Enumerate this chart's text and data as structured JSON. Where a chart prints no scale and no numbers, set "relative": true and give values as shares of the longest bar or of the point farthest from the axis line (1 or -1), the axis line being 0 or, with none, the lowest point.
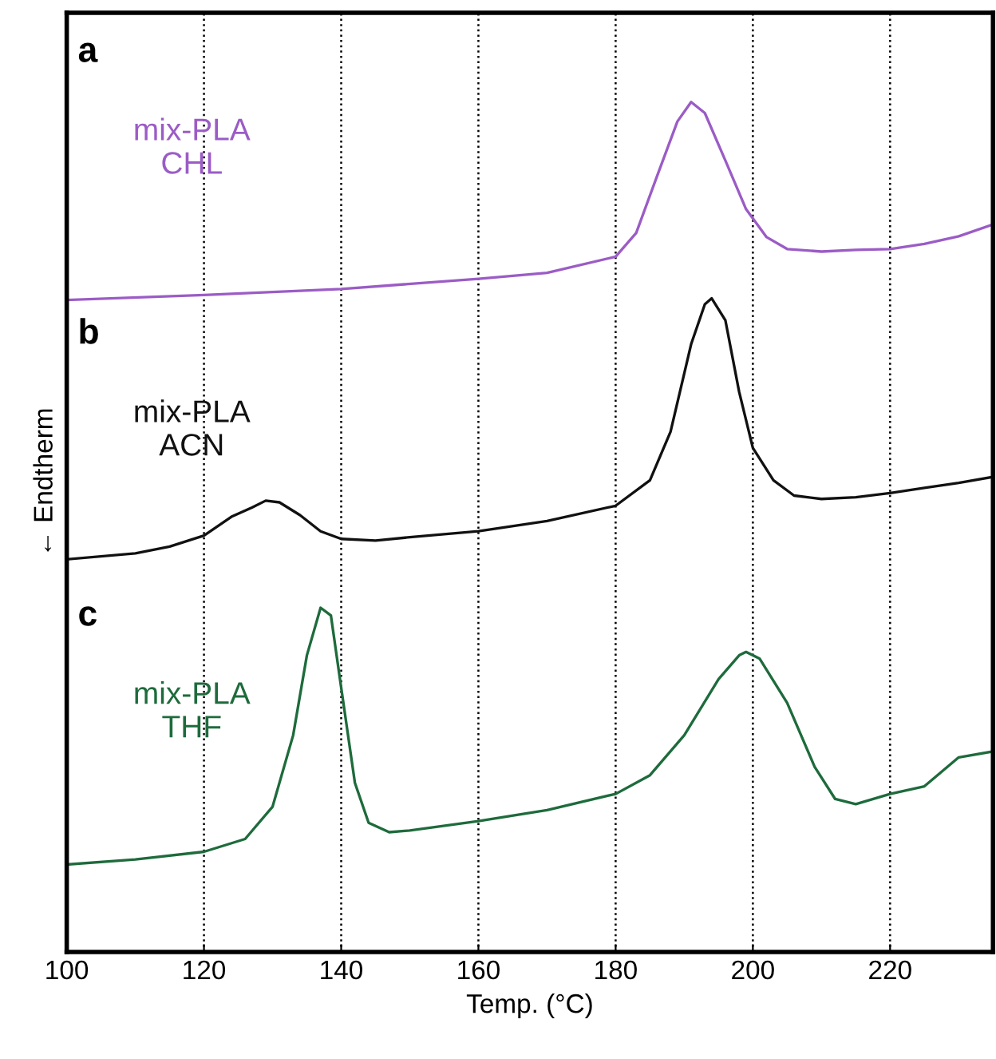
{
  "chart_data": {
    "type": "line",
    "relative": true,
    "xlabel": "Temp. (°C)",
    "ylabel": "← Endtherm",
    "xlim": [
      100,
      235
    ],
    "xticks": [
      100,
      120,
      140,
      160,
      180,
      200,
      220
    ],
    "grid": "x",
    "tick_labels": "x",
    "line_style": "solid",
    "marker": "none",
    "annotations": [
      "a",
      "b",
      "c"
    ],
    "series": [
      {
        "name": "mix-PLA\nCHL",
        "color": "#9b5cc6",
        "x": [
          100,
          120,
          140,
          160,
          170,
          180,
          183,
          186,
          189,
          191,
          193,
          196,
          199,
          202,
          205,
          210,
          215,
          220,
          225,
          230,
          235
        ],
        "values": [
          0.767,
          0.773,
          0.78,
          0.792,
          0.799,
          0.818,
          0.846,
          0.912,
          0.977,
          1.0,
          0.987,
          0.931,
          0.874,
          0.841,
          0.827,
          0.824,
          0.826,
          0.827,
          0.833,
          0.842,
          0.856
        ]
      },
      {
        "name": "mix-PLA\nACN",
        "color": "#111111",
        "x": [
          100,
          110,
          115,
          120,
          124,
          127,
          129,
          131,
          134,
          137,
          140,
          145,
          150,
          160,
          170,
          180,
          185,
          188,
          191,
          193,
          194,
          196,
          198,
          200,
          203,
          206,
          210,
          215,
          220,
          225,
          230,
          235
        ],
        "values": [
          0.462,
          0.469,
          0.477,
          0.49,
          0.512,
          0.523,
          0.531,
          0.529,
          0.514,
          0.495,
          0.486,
          0.484,
          0.488,
          0.495,
          0.507,
          0.525,
          0.555,
          0.612,
          0.715,
          0.762,
          0.769,
          0.743,
          0.659,
          0.593,
          0.555,
          0.537,
          0.533,
          0.535,
          0.54,
          0.546,
          0.552,
          0.559
        ]
      },
      {
        "name": "mix-PLA\nTHF",
        "color": "#1e6b3c",
        "x": [
          100,
          110,
          120,
          126,
          130,
          133,
          135,
          137,
          138.5,
          140,
          142,
          144,
          147,
          150,
          160,
          170,
          180,
          185,
          190,
          195,
          198,
          199,
          201,
          205,
          209,
          212,
          215,
          220,
          225,
          230,
          235
        ],
        "values": [
          0.103,
          0.109,
          0.118,
          0.133,
          0.171,
          0.255,
          0.349,
          0.405,
          0.396,
          0.311,
          0.199,
          0.152,
          0.141,
          0.143,
          0.154,
          0.167,
          0.186,
          0.208,
          0.255,
          0.321,
          0.349,
          0.353,
          0.345,
          0.293,
          0.218,
          0.18,
          0.174,
          0.186,
          0.195,
          0.229,
          0.236
        ]
      }
    ]
  }
}
